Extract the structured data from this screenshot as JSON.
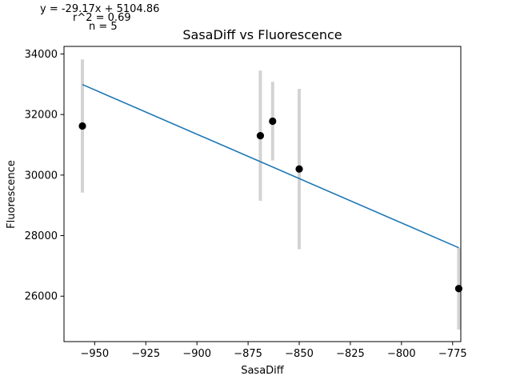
{
  "annotations": {
    "equation": "y = -29.17x + 5104.86",
    "r2": "r^2 = 0.69",
    "n": "n = 5"
  },
  "chart_data": {
    "type": "scatter",
    "title": "SasaDiff vs Fluorescence",
    "xlabel": "SasaDiff",
    "ylabel": "Fluorescence",
    "xlim": [
      -965,
      -771
    ],
    "ylim": [
      24500,
      34250
    ],
    "xticks": [
      -950,
      -925,
      -900,
      -875,
      -850,
      -825,
      -800,
      -775
    ],
    "xtick_labels": [
      "−950",
      "−925",
      "−900",
      "−875",
      "−850",
      "−825",
      "−800",
      "−775"
    ],
    "yticks": [
      26000,
      28000,
      30000,
      32000,
      34000
    ],
    "ytick_labels": [
      "26000",
      "28000",
      "30000",
      "32000",
      "34000"
    ],
    "grid": false,
    "points": [
      {
        "x": -956,
        "y": 31620,
        "err": 2200
      },
      {
        "x": -869,
        "y": 31300,
        "err": 2150
      },
      {
        "x": -863,
        "y": 31780,
        "err": 1300
      },
      {
        "x": -850,
        "y": 30200,
        "err": 2650
      },
      {
        "x": -772,
        "y": 26250,
        "err": 1350
      }
    ],
    "fit_line": {
      "x": [
        -956,
        -772
      ],
      "y": [
        32990,
        27600
      ]
    },
    "colors": {
      "points": "#000000",
      "errorbars": "#d3d3d3",
      "fit": "#1f77b4"
    }
  }
}
